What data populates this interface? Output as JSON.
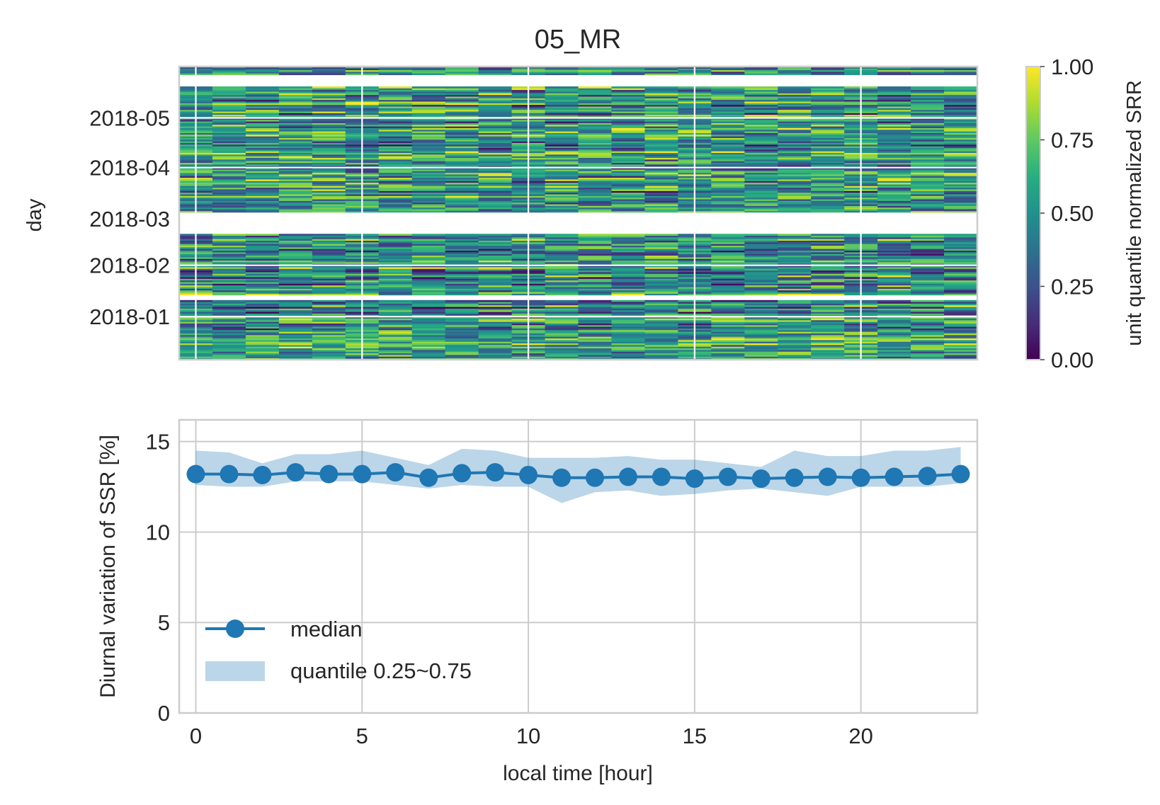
{
  "chart_data": [
    {
      "type": "heatmap",
      "title": "05_MR",
      "xlabel": "",
      "ylabel": "day",
      "x_hours": [
        0,
        1,
        2,
        3,
        4,
        5,
        6,
        7,
        8,
        9,
        10,
        11,
        12,
        13,
        14,
        15,
        16,
        17,
        18,
        19,
        20,
        21,
        22,
        23
      ],
      "y_date_range": [
        "2017-12-06",
        "2018-06-01"
      ],
      "y_ticks": [
        "2018-01",
        "2018-02",
        "2018-03",
        "2018-04",
        "2018-05"
      ],
      "missing_day_ranges": [
        [
          "2018-01-11",
          "2018-01-13"
        ],
        [
          "2018-02-20",
          "2018-03-04"
        ],
        [
          "2018-05-20",
          "2018-05-26"
        ]
      ],
      "value_range": [
        0,
        1
      ],
      "colormap": "viridis",
      "colorbar": {
        "label": "unit quantile normalized SRR",
        "ticks": [
          "0.00",
          "0.25",
          "0.50",
          "0.75",
          "1.00"
        ]
      },
      "grid": true
    },
    {
      "type": "line",
      "title": "",
      "xlabel": "local time [hour]",
      "ylabel": "Diurnal variation of SSR [%]",
      "x": [
        0,
        1,
        2,
        3,
        4,
        5,
        6,
        7,
        8,
        9,
        10,
        11,
        12,
        13,
        14,
        15,
        16,
        17,
        18,
        19,
        20,
        21,
        22,
        23
      ],
      "xlim": [
        -0.5,
        23.5
      ],
      "ylim": [
        0,
        16.2
      ],
      "x_ticks": [
        "0",
        "5",
        "10",
        "15",
        "20"
      ],
      "y_ticks": [
        "0",
        "5",
        "10",
        "15"
      ],
      "series": [
        {
          "name": "median",
          "kind": "line-marker",
          "color": "#1f77b4",
          "values": [
            13.2,
            13.2,
            13.15,
            13.3,
            13.2,
            13.2,
            13.3,
            13.0,
            13.25,
            13.3,
            13.15,
            13.0,
            13.0,
            13.05,
            13.05,
            12.95,
            13.05,
            12.95,
            13.0,
            13.05,
            13.0,
            13.05,
            13.1,
            13.2
          ]
        },
        {
          "name": "quantile 0.25~0.75",
          "kind": "band",
          "color": "#1f77b4",
          "lower": [
            12.6,
            12.5,
            12.5,
            12.8,
            12.8,
            12.8,
            12.6,
            12.4,
            12.6,
            12.5,
            12.5,
            11.6,
            12.2,
            12.3,
            12.0,
            12.1,
            12.3,
            12.4,
            12.2,
            12.0,
            12.5,
            12.5,
            12.5,
            12.7
          ],
          "upper": [
            14.5,
            14.4,
            13.8,
            14.3,
            14.3,
            14.5,
            14.1,
            13.7,
            14.6,
            14.5,
            14.1,
            14.1,
            14.1,
            14.2,
            14.0,
            14.0,
            13.8,
            13.6,
            14.5,
            14.2,
            14.2,
            14.5,
            14.5,
            14.7
          ]
        }
      ],
      "legend": {
        "placement": "lower-left",
        "entries": [
          "median",
          "quantile 0.25~0.75"
        ]
      },
      "grid": true
    }
  ]
}
